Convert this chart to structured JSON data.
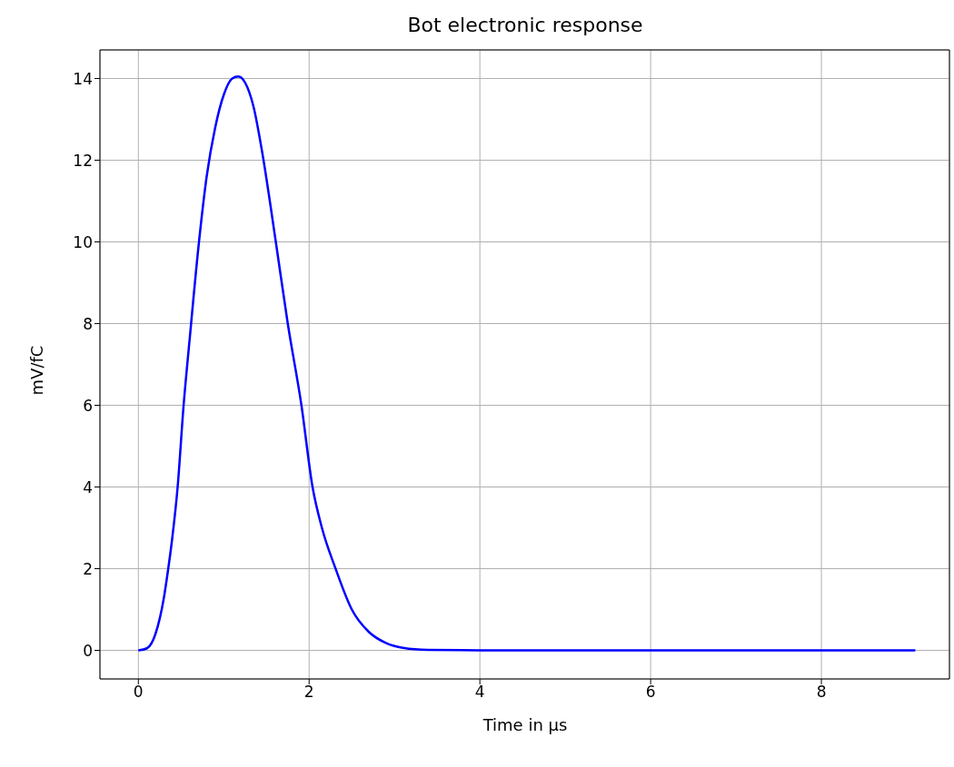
{
  "chart_data": {
    "type": "line",
    "title": "Bot electronic response",
    "xlabel": "Time in μs",
    "ylabel": "mV/fC",
    "xlim": [
      -0.45,
      9.5
    ],
    "xticks": [
      0,
      2,
      4,
      6,
      8
    ],
    "ylim": [
      -0.7,
      14.7
    ],
    "yticks": [
      0,
      2,
      4,
      6,
      8,
      10,
      12,
      14
    ],
    "grid": true,
    "marker": "none",
    "line_style": "solid",
    "series": [
      {
        "color": "#0000ff",
        "x": [
          0,
          0.1,
          0.2,
          0.3,
          0.35,
          0.4,
          0.46,
          0.53,
          0.6,
          0.71,
          0.8,
          0.9,
          1.0,
          1.1,
          1.17,
          1.25,
          1.35,
          1.45,
          1.61,
          1.75,
          1.91,
          2.04,
          2.15,
          2.31,
          2.5,
          2.7,
          2.9,
          3.1,
          3.4,
          4,
          6,
          8,
          9.1
        ],
        "values": [
          0,
          0.05,
          0.4,
          1.3,
          2,
          2.8,
          4,
          6,
          7.6,
          10,
          11.6,
          12.8,
          13.6,
          14.0,
          14.05,
          13.9,
          13.3,
          12.2,
          10,
          8,
          6,
          4,
          3,
          2,
          1.0,
          0.45,
          0.18,
          0.06,
          0.01,
          0,
          0,
          0,
          0
        ]
      }
    ]
  }
}
